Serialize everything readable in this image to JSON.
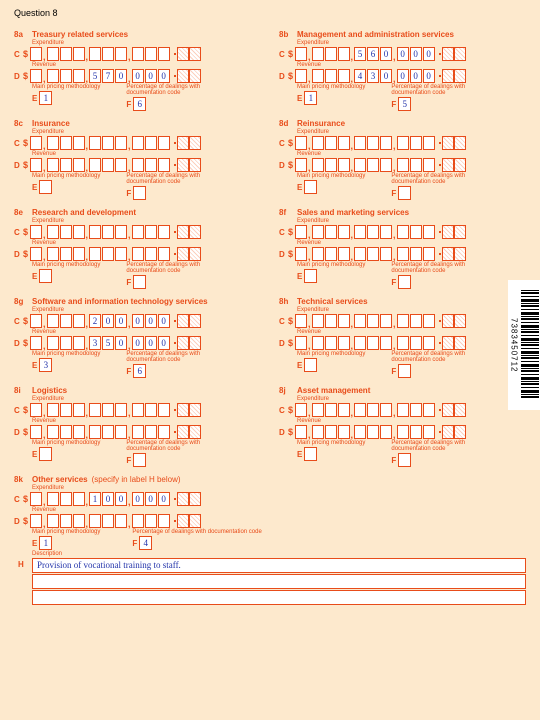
{
  "page_title": "Question 8",
  "labels": {
    "expenditure": "Expenditure",
    "revenue": "Revenue",
    "main_pricing": "Main pricing methodology",
    "pct_dealings": "Percentage of dealings with documentation code",
    "description": "Description"
  },
  "suffix_x": "✕",
  "barcode": "7383450712",
  "sections": {
    "a": {
      "id": "8a",
      "title": "Treasury related services",
      "C": [
        "",
        "",
        "",
        "",
        "",
        "",
        "",
        "",
        "",
        ""
      ],
      "D": [
        "",
        "",
        "",
        "",
        "5",
        "7",
        "0",
        "0",
        "0",
        "0"
      ],
      "E": "1",
      "F": "6"
    },
    "b": {
      "id": "8b",
      "title": "Management and administration services",
      "C": [
        "",
        "",
        "",
        "",
        "5",
        "6",
        "0",
        "0",
        "0",
        "0"
      ],
      "D": [
        "",
        "",
        "",
        "",
        "4",
        "3",
        "0",
        "0",
        "0",
        "0"
      ],
      "E": "1",
      "F": "5"
    },
    "c": {
      "id": "8c",
      "title": "Insurance",
      "C": [
        "",
        "",
        "",
        "",
        "",
        "",
        "",
        "",
        "",
        ""
      ],
      "D": [
        "",
        "",
        "",
        "",
        "",
        "",
        "",
        "",
        "",
        ""
      ],
      "E": "",
      "F": ""
    },
    "d": {
      "id": "8d",
      "title": "Reinsurance",
      "C": [
        "",
        "",
        "",
        "",
        "",
        "",
        "",
        "",
        "",
        ""
      ],
      "D": [
        "",
        "",
        "",
        "",
        "",
        "",
        "",
        "",
        "",
        ""
      ],
      "E": "",
      "F": ""
    },
    "e": {
      "id": "8e",
      "title": "Research and development",
      "C": [
        "",
        "",
        "",
        "",
        "",
        "",
        "",
        "",
        "",
        ""
      ],
      "D": [
        "",
        "",
        "",
        "",
        "",
        "",
        "",
        "",
        "",
        ""
      ],
      "E": "",
      "F": ""
    },
    "f": {
      "id": "8f",
      "title": "Sales and marketing services",
      "C": [
        "",
        "",
        "",
        "",
        "",
        "",
        "",
        "",
        "",
        ""
      ],
      "D": [
        "",
        "",
        "",
        "",
        "",
        "",
        "",
        "",
        "",
        ""
      ],
      "E": "",
      "F": ""
    },
    "g": {
      "id": "8g",
      "title": "Software and information technology services",
      "C": [
        "",
        "",
        "",
        "",
        "2",
        "0",
        "0",
        "0",
        "0",
        "0"
      ],
      "D": [
        "",
        "",
        "",
        "",
        "3",
        "5",
        "0",
        "0",
        "0",
        "0"
      ],
      "E": "3",
      "F": "6"
    },
    "h": {
      "id": "8h",
      "title": "Technical services",
      "C": [
        "",
        "",
        "",
        "",
        "",
        "",
        "",
        "",
        "",
        ""
      ],
      "D": [
        "",
        "",
        "",
        "",
        "",
        "",
        "",
        "",
        "",
        ""
      ],
      "E": "",
      "F": ""
    },
    "i": {
      "id": "8i",
      "title": "Logistics",
      "C": [
        "",
        "",
        "",
        "",
        "",
        "",
        "",
        "",
        "",
        ""
      ],
      "D": [
        "",
        "",
        "",
        "",
        "",
        "",
        "",
        "",
        "",
        ""
      ],
      "E": "",
      "F": ""
    },
    "j": {
      "id": "8j",
      "title": "Asset management",
      "C": [
        "",
        "",
        "",
        "",
        "",
        "",
        "",
        "",
        "",
        ""
      ],
      "D": [
        "",
        "",
        "",
        "",
        "",
        "",
        "",
        "",
        "",
        ""
      ],
      "E": "",
      "F": ""
    },
    "k": {
      "id": "8k",
      "title": "Other services",
      "subtitle": "(specify in label H below)",
      "C": [
        "",
        "",
        "",
        "",
        "1",
        "0",
        "0",
        "0",
        "0",
        "0"
      ],
      "D": [
        "",
        "",
        "",
        "",
        "",
        "",
        "",
        "",
        "",
        ""
      ],
      "E": "1",
      "F": "4",
      "H": "Provision of vocational training to staff."
    }
  },
  "colors": {
    "page_bg": "#fde9cd",
    "accent": "#e84c1a",
    "cell_bg": "#ffffff",
    "ink": "#2233aa"
  }
}
